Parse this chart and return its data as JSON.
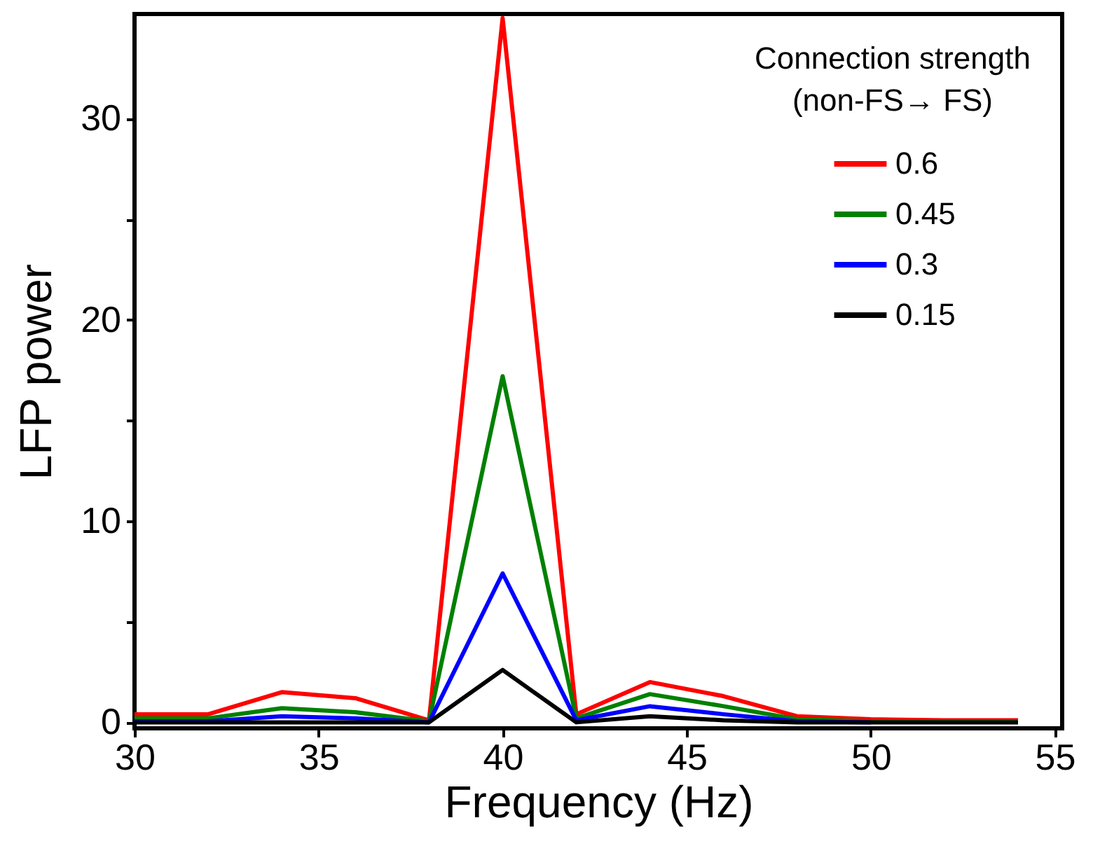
{
  "chart_data": {
    "type": "line",
    "xlabel": "Frequency (Hz)",
    "ylabel": "LFP power",
    "legend_title": "Connection strength\n(non-FS→ FS)",
    "legend": "top right",
    "grid": false,
    "marker": "none",
    "line_style": "solid",
    "x": [
      30,
      32,
      34,
      36,
      38,
      40,
      42,
      44,
      46,
      48,
      50,
      52,
      54
    ],
    "xlim": [
      30,
      55.2
    ],
    "xticks": [
      30,
      35,
      40,
      45,
      50,
      55
    ],
    "ylim": [
      -0.3,
      35.2
    ],
    "yticks": [
      0,
      {
        "value": 5,
        "label": null
      },
      10,
      {
        "value": 15,
        "label": null
      },
      20,
      {
        "value": 25,
        "label": null
      },
      30
    ],
    "series": [
      {
        "name": "0.6",
        "color": "#ff0000",
        "values": [
          0.4,
          0.4,
          1.5,
          1.2,
          0.1,
          35,
          0.4,
          2.0,
          1.3,
          0.3,
          0.15,
          0.1,
          0.1
        ]
      },
      {
        "name": "0.45",
        "color": "#008000",
        "values": [
          0.2,
          0.2,
          0.7,
          0.5,
          0.05,
          17.2,
          0.2,
          1.4,
          0.8,
          0.15,
          0.05,
          0.05,
          0.05
        ]
      },
      {
        "name": "0.3",
        "color": "#0000ff",
        "values": [
          0.05,
          0.05,
          0.3,
          0.2,
          0,
          7.4,
          0.1,
          0.8,
          0.4,
          0.05,
          0,
          null,
          null
        ]
      },
      {
        "name": "0.15",
        "color": "#000000",
        "values": [
          0,
          0,
          0,
          0,
          0,
          2.6,
          0,
          0.3,
          0.1,
          0,
          0,
          0,
          0
        ]
      }
    ]
  }
}
